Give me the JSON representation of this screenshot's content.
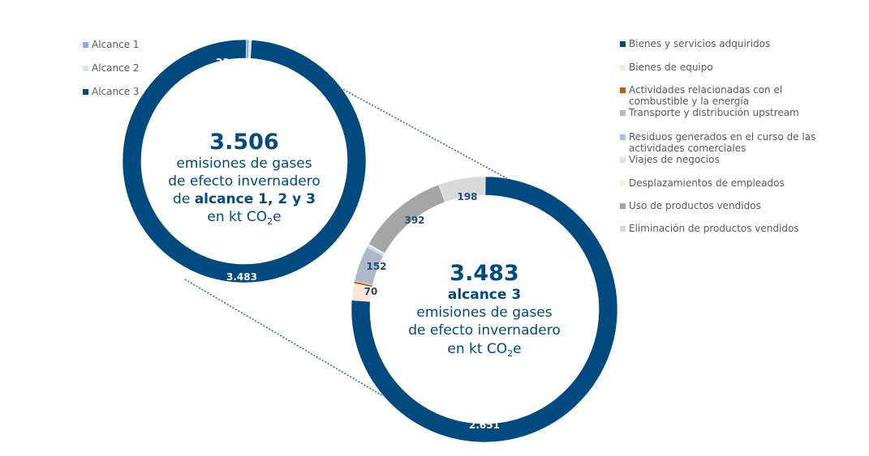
{
  "chart_data": [
    {
      "type": "pie",
      "donut": true,
      "series": [
        {
          "label": "Alcance 1",
          "value": 23,
          "display": "23",
          "color": "#8faadc"
        },
        {
          "label": "Alcance 2",
          "value": 1,
          "display": "1",
          "color": "#dae3f3"
        },
        {
          "label": "Alcance 3",
          "value": 3483,
          "display": "3.483",
          "color": "#004a80"
        }
      ],
      "legend_position": "left",
      "center_text": {
        "total": "3.506",
        "line1": "emisiones de gases",
        "line2": "de efecto invernadero",
        "line3_prefix": "de ",
        "line3_bold": "alcance 1, 2 y 3",
        "unit_prefix": "en kt CO",
        "unit_sub": "2",
        "unit_suffix": "e"
      }
    },
    {
      "type": "pie",
      "donut": true,
      "series": [
        {
          "label": "Bienes y servicios adquiridos",
          "value": 2651,
          "display": "2.651",
          "color": "#004a80"
        },
        {
          "label": "Bienes de equipo",
          "value": 70,
          "display": "70",
          "color": "#fbe5d6"
        },
        {
          "label": "Actividades relacionadas con el combustible y la energía",
          "value": 10,
          "display": "",
          "color": "#c55a11"
        },
        {
          "label": "Transporte y distribución upstream",
          "value": 152,
          "display": "152",
          "color": "#adb9ca"
        },
        {
          "label": "Residuos generados en el curso de las actividades comerciales",
          "value": 5,
          "display": "",
          "color": "#9dc3e6"
        },
        {
          "label": "Viajes de negocios",
          "value": 5,
          "display": "",
          "color": "#dae3f3"
        },
        {
          "label": "Desplazamientos de empleados",
          "value": 0,
          "display": "",
          "color": "#fff2cc"
        },
        {
          "label": "Uso de productos vendidos",
          "value": 392,
          "display": "392",
          "color": "#a5a5a5"
        },
        {
          "label": "Eliminación de productos vendidos",
          "value": 198,
          "display": "198",
          "color": "#d9d9d9"
        }
      ],
      "legend_position": "right",
      "center_text": {
        "total": "3.483",
        "line1_bold": "alcance 3",
        "line2": "emisiones de gases",
        "line3": "de efecto invernadero",
        "unit_prefix": "en kt CO",
        "unit_sub": "2",
        "unit_suffix": "e"
      }
    }
  ],
  "legend_left": [
    {
      "label": "Alcance 1",
      "color": "#8faadc"
    },
    {
      "label": "Alcance 2",
      "color": "#dae3f3"
    },
    {
      "label": "Alcance 3",
      "color": "#004a80"
    }
  ],
  "legend_right": [
    {
      "lines": [
        "Bienes y servicios adquiridos"
      ],
      "color": "#004a80"
    },
    {
      "lines": [
        "Bienes de equipo"
      ],
      "color": "#fbe5d6"
    },
    {
      "lines": [
        "Actividades relacionadas con el",
        "combustible y la energía"
      ],
      "color": "#c55a11"
    },
    {
      "lines": [
        "Transporte y distribución upstream"
      ],
      "color": "#adb9ca"
    },
    {
      "lines": [
        "Residuos generados en el curso de las",
        "actividades comerciales"
      ],
      "color": "#9dc3e6"
    },
    {
      "lines": [
        "Viajes de negocios"
      ],
      "color": "#dae3f3"
    },
    {
      "lines": [
        "Desplazamientos de empleados"
      ],
      "color": "#fff2cc"
    },
    {
      "lines": [
        "Uso de productos vendidos"
      ],
      "color": "#a5a5a5"
    },
    {
      "lines": [
        "Eliminación de productos vendidos"
      ],
      "color": "#d9d9d9"
    }
  ],
  "colors": {
    "accent": "#004a80",
    "label_text": "#ffffff",
    "dark_label": "#1f4e79",
    "legend_text": "#595959"
  }
}
